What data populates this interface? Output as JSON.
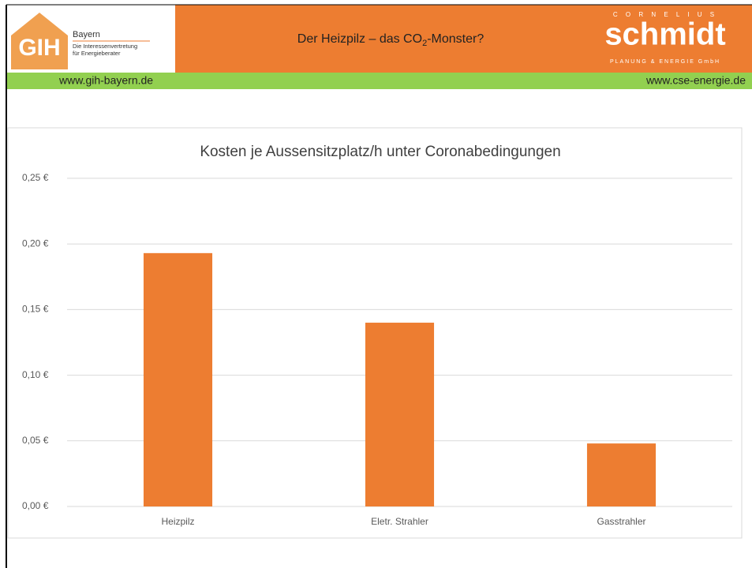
{
  "header": {
    "logo_left": {
      "mark": "GIH",
      "line1": "Bayern",
      "line2": "Die Interessenvertretung",
      "line3": "für Energieberater"
    },
    "title": {
      "pre": "Der Heizpilz – das CO",
      "sub": "2",
      "post": "-Monster?"
    },
    "logo_right": {
      "top": "C O R N E L I U S",
      "name": "schmidt",
      "bottom": "PLANUNG & ENERGIE GmbH"
    },
    "url_left": "www.gih-bayern.de",
    "url_right": "www.cse-energie.de"
  },
  "chart_data": {
    "type": "bar",
    "title": "Kosten je Aussensitzplatz/h  unter Coronabedingungen",
    "categories": [
      "Heizpilz",
      "Eletr. Strahler",
      "Gasstrahler"
    ],
    "values": [
      0.193,
      0.14,
      0.048
    ],
    "color": "#ed7d31",
    "ylim": [
      0,
      0.25
    ],
    "yticks": [
      {
        "value": 0,
        "label": "0,00 €"
      },
      {
        "value": 0.05,
        "label": "0,05 €"
      },
      {
        "value": 0.1,
        "label": "0,10 €"
      },
      {
        "value": 0.15,
        "label": "0,15 €"
      },
      {
        "value": 0.2,
        "label": "0,20 €"
      },
      {
        "value": 0.25,
        "label": "0,25 €"
      }
    ],
    "grid": true
  }
}
